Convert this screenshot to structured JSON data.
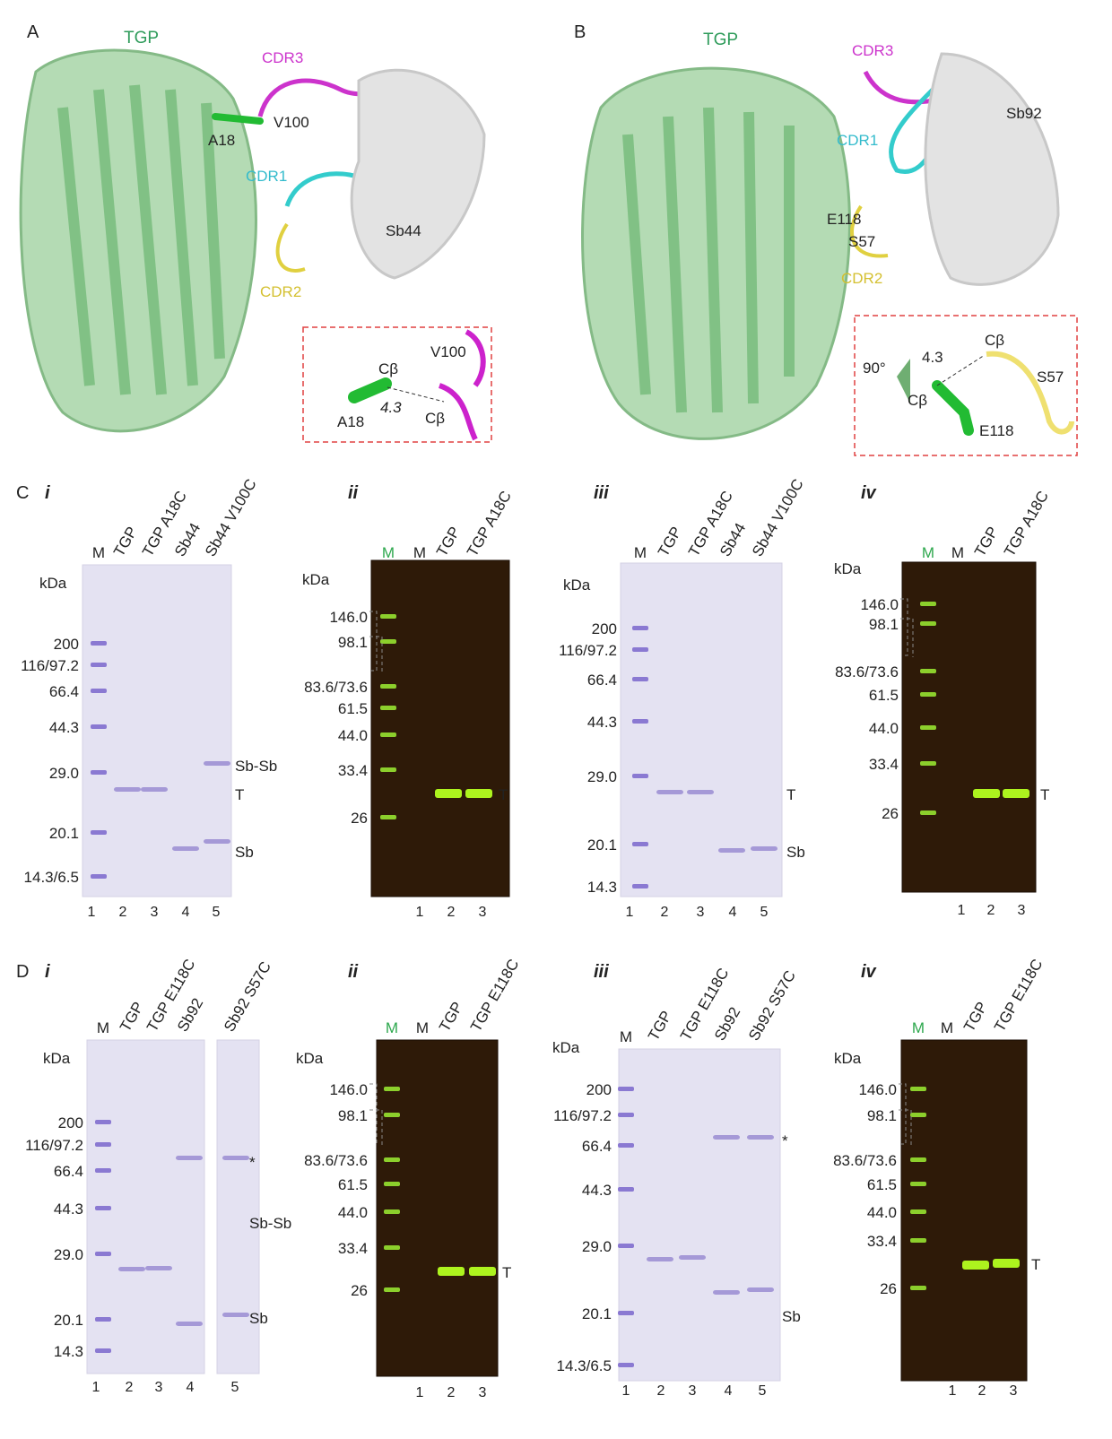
{
  "panel_a": {
    "label": "A",
    "tgp": "TGP",
    "cdr3": "CDR3",
    "v100": "V100",
    "a18": "A18",
    "cdr1": "CDR1",
    "sb44": "Sb44",
    "cdr2": "CDR2",
    "inset": {
      "v100": "V100",
      "cb_top": "Cβ",
      "a18": "A18",
      "distance": "4.3",
      "cb_bottom": "Cβ"
    }
  },
  "panel_b": {
    "label": "B",
    "tgp": "TGP",
    "cdr3": "CDR3",
    "sb92": "Sb92",
    "cdr1": "CDR1",
    "e118": "E118",
    "s57": "S57",
    "cdr2": "CDR2",
    "inset": {
      "rotation": "90°",
      "distance": "4.3",
      "cb_top": "Cβ",
      "s57": "S57",
      "cb_bottom": "Cβ",
      "e118": "E118"
    }
  },
  "panel_c": {
    "label": "C",
    "gels": [
      {
        "numeral": "i",
        "lanes": [
          "M",
          "TGP",
          "TGP A18C",
          "Sb44",
          "Sb44 V100C"
        ],
        "unit": "kDa",
        "markers": [
          "200",
          "116/97.2",
          "66.4",
          "44.3",
          "29.0",
          "20.1",
          "14.3/6.5"
        ],
        "bands": [
          "Sb-Sb",
          "T",
          "Sb"
        ],
        "lane_numbers": [
          "1",
          "2",
          "3",
          "4",
          "5"
        ]
      },
      {
        "numeral": "ii",
        "lanes": [
          "M",
          "M",
          "TGP",
          "TGP A18C"
        ],
        "unit": "kDa",
        "markers": [
          "146.0",
          "98.1",
          "83.6/73.6",
          "61.5",
          "44.0",
          "33.4",
          "26"
        ],
        "bands": [
          "T"
        ],
        "lane_numbers": [
          "1",
          "2",
          "3"
        ]
      },
      {
        "numeral": "iii",
        "lanes": [
          "M",
          "TGP",
          "TGP A18C",
          "Sb44",
          "Sb44 V100C"
        ],
        "unit": "kDa",
        "markers": [
          "200",
          "116/97.2",
          "66.4",
          "44.3",
          "29.0",
          "20.1",
          "14.3"
        ],
        "bands": [
          "T",
          "Sb"
        ],
        "lane_numbers": [
          "1",
          "2",
          "3",
          "4",
          "5"
        ]
      },
      {
        "numeral": "iv",
        "lanes": [
          "M",
          "M",
          "TGP",
          "TGP A18C"
        ],
        "unit": "kDa",
        "markers": [
          "146.0",
          "98.1",
          "83.6/73.6",
          "61.5",
          "44.0",
          "33.4",
          "26"
        ],
        "bands": [
          "T"
        ],
        "lane_numbers": [
          "1",
          "2",
          "3"
        ]
      }
    ]
  },
  "panel_d": {
    "label": "D",
    "gels": [
      {
        "numeral": "i",
        "lanes": [
          "M",
          "TGP",
          "TGP E118C",
          "Sb92",
          "Sb92 S57C"
        ],
        "unit": "kDa",
        "markers": [
          "200",
          "116/97.2",
          "66.4",
          "44.3",
          "29.0",
          "20.1",
          "14.3"
        ],
        "bands": [
          "*",
          "Sb-Sb",
          "Sb"
        ],
        "lane_numbers": [
          "1",
          "2",
          "3",
          "4",
          "5"
        ]
      },
      {
        "numeral": "ii",
        "lanes": [
          "M",
          "M",
          "TGP",
          "TGP E118C"
        ],
        "unit": "kDa",
        "markers": [
          "146.0",
          "98.1",
          "83.6/73.6",
          "61.5",
          "44.0",
          "33.4",
          "26"
        ],
        "bands": [
          "T"
        ],
        "lane_numbers": [
          "1",
          "2",
          "3"
        ]
      },
      {
        "numeral": "iii",
        "lanes": [
          "M",
          "TGP",
          "TGP E118C",
          "Sb92",
          "Sb92 S57C"
        ],
        "unit": "kDa",
        "markers": [
          "200",
          "116/97.2",
          "66.4",
          "44.3",
          "29.0",
          "20.1",
          "14.3/6.5"
        ],
        "bands": [
          "*",
          "Sb"
        ],
        "lane_numbers": [
          "1",
          "2",
          "3",
          "4",
          "5"
        ]
      },
      {
        "numeral": "iv",
        "lanes": [
          "M",
          "M",
          "TGP",
          "TGP E118C"
        ],
        "unit": "kDa",
        "markers": [
          "146.0",
          "98.1",
          "83.6/73.6",
          "61.5",
          "44.0",
          "33.4",
          "26"
        ],
        "bands": [
          "T"
        ],
        "lane_numbers": [
          "1",
          "2",
          "3"
        ]
      }
    ]
  }
}
